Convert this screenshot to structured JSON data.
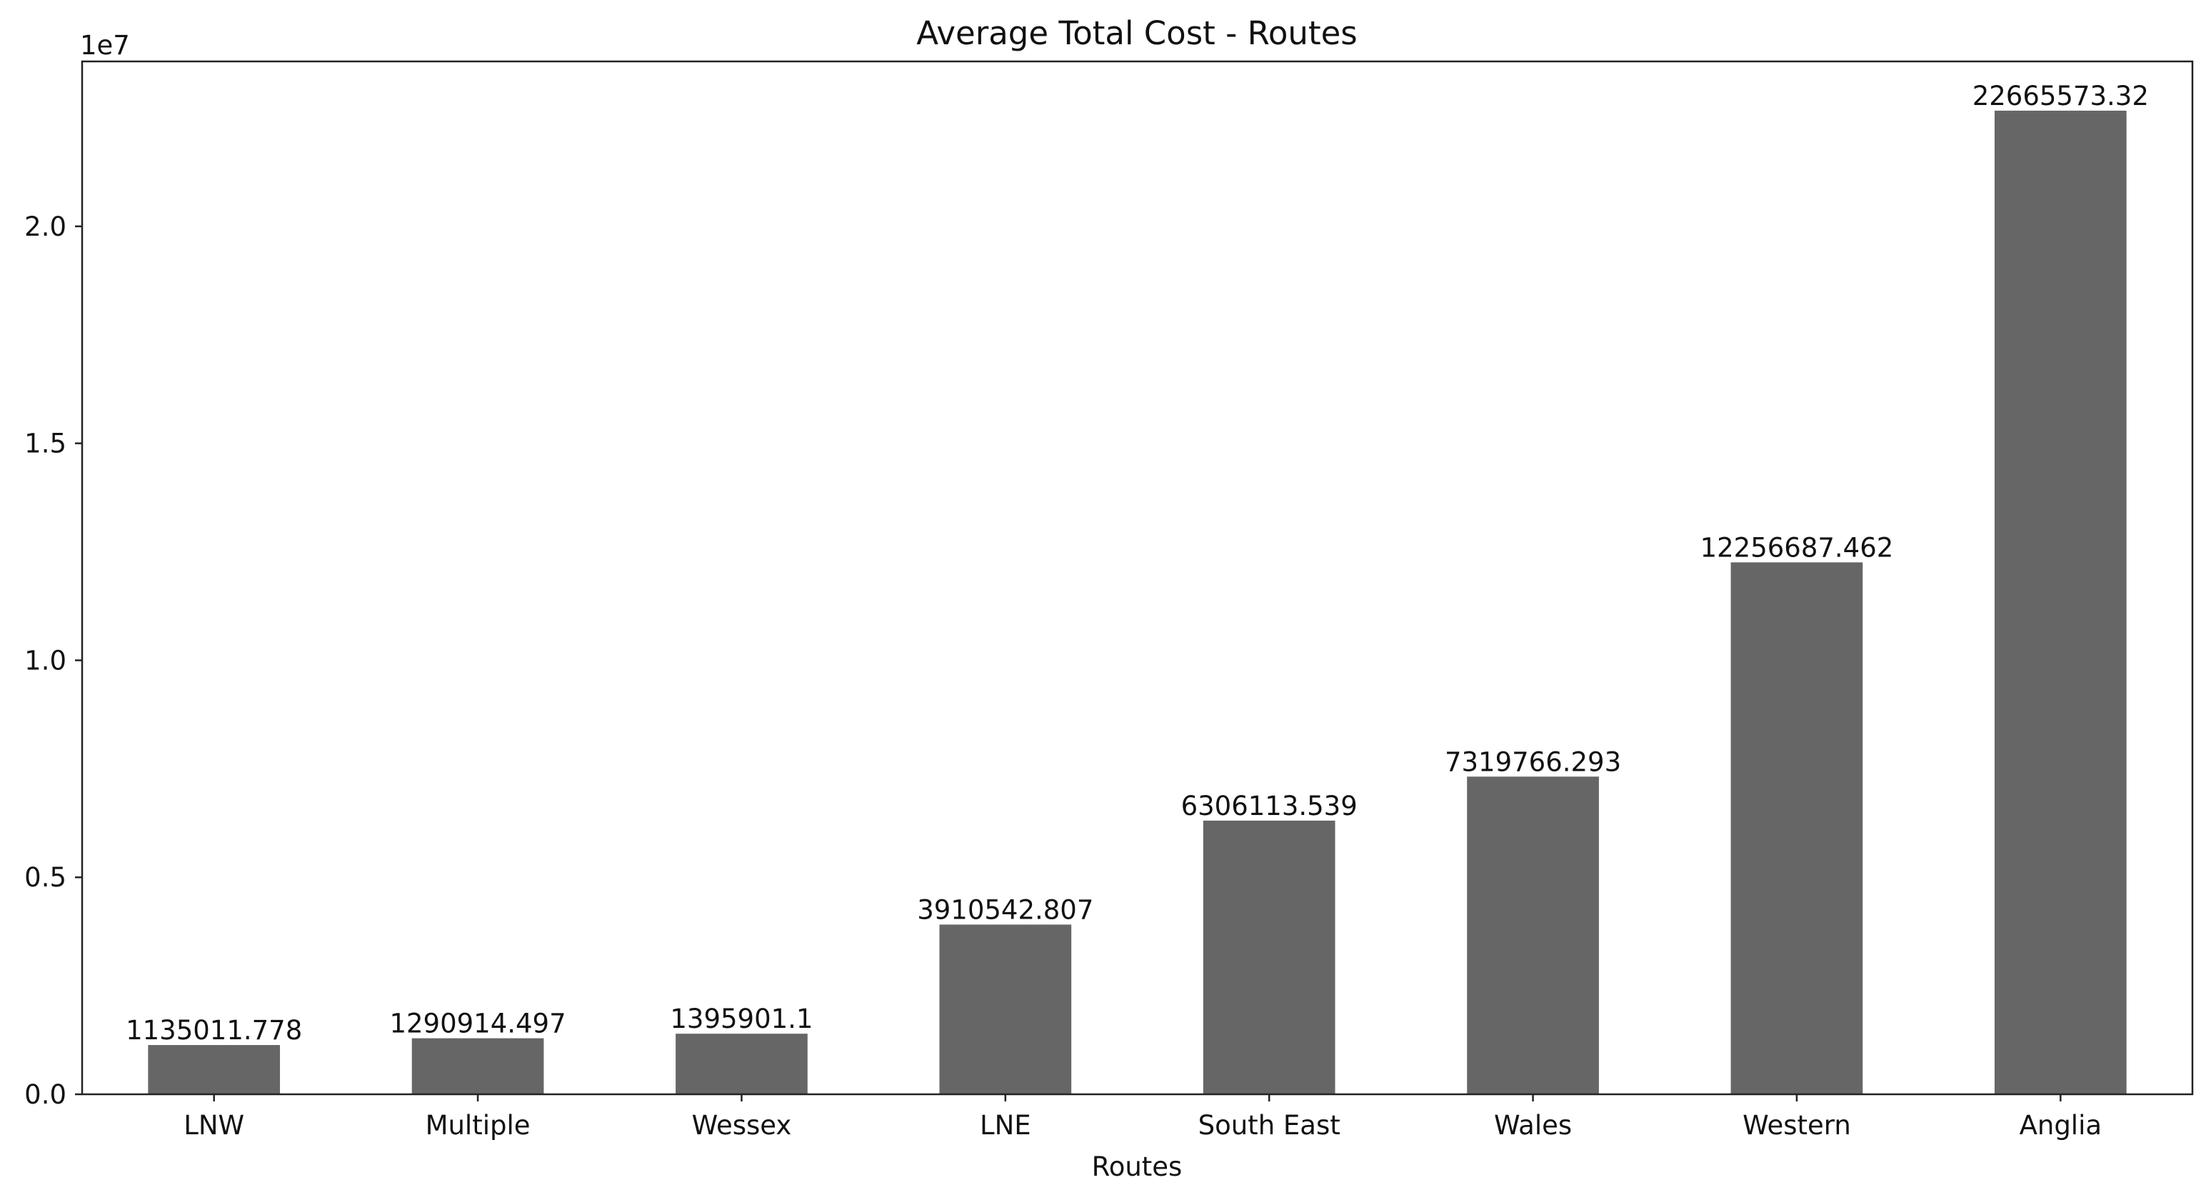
{
  "chart_data": {
    "type": "bar",
    "title": "Average Total Cost - Routes",
    "xlabel": "Routes",
    "ylabel": "",
    "offset_text": "1e7",
    "categories": [
      "LNW",
      "Multiple",
      "Wessex",
      "LNE",
      "South East",
      "Wales",
      "Western",
      "Anglia"
    ],
    "values": [
      1135011.778,
      1290914.497,
      1395901.1,
      3910542.807,
      6306113.539,
      7319766.293,
      12256687.462,
      22665573.32
    ],
    "value_labels": [
      "1135011.778",
      "1290914.497",
      "1395901.1",
      "3910542.807",
      "6306113.539",
      "7319766.293",
      "12256687.462",
      "22665573.32"
    ],
    "ylim": [
      0,
      23800000
    ],
    "yticks": [
      0,
      5000000,
      10000000,
      15000000,
      20000000
    ],
    "ytick_labels": [
      "0.0",
      "0.5",
      "1.0",
      "1.5",
      "2.0"
    ],
    "bar_color": "#666666",
    "grid": false,
    "legend": "none"
  }
}
